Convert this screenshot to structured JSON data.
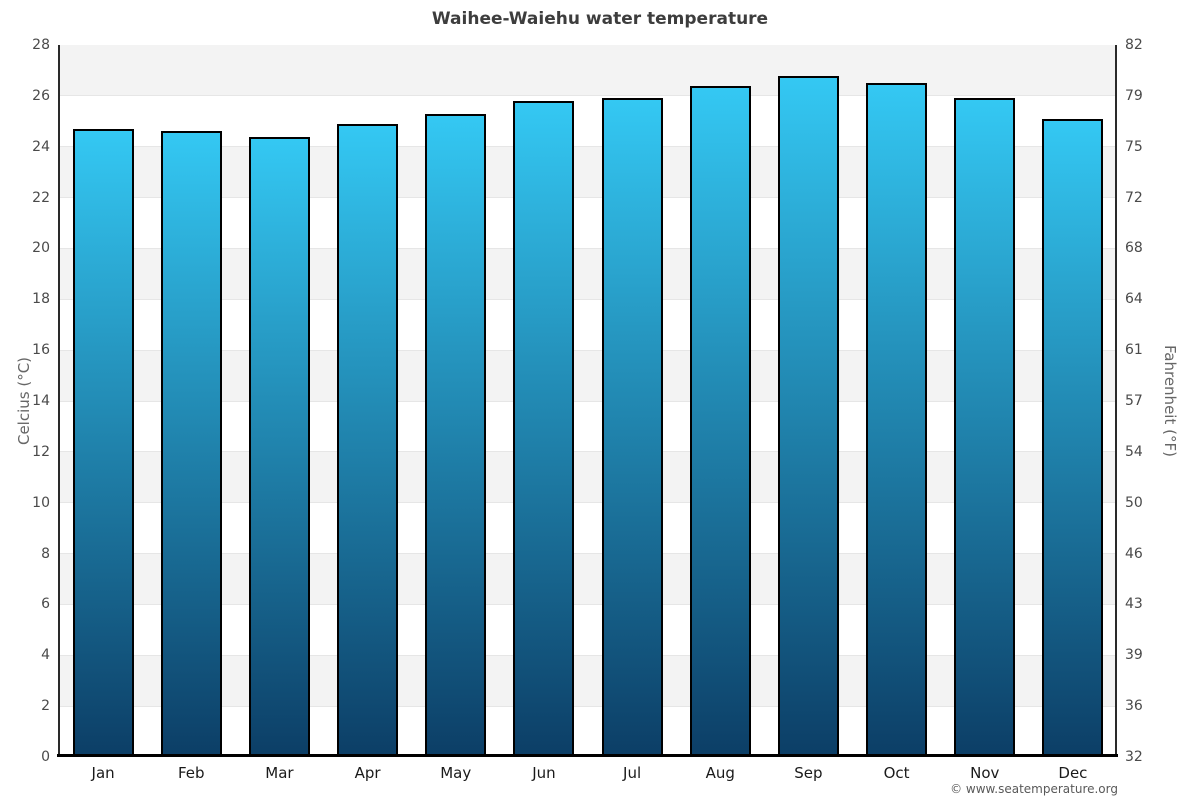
{
  "title": "Waihee-Waiehu water temperature",
  "footer": "© www.seatemperature.org",
  "chart_data": {
    "type": "bar",
    "title": "Waihee-Waiehu water temperature",
    "categories": [
      "Jan",
      "Feb",
      "Mar",
      "Apr",
      "May",
      "Jun",
      "Jul",
      "Aug",
      "Sep",
      "Oct",
      "Nov",
      "Dec"
    ],
    "values": [
      24.7,
      24.6,
      24.4,
      24.9,
      25.3,
      25.8,
      25.9,
      26.4,
      26.8,
      26.5,
      25.9,
      25.1
    ],
    "unit": "°C",
    "ylabel_left": "Celcius (°C)",
    "ylabel_right": "Fahrenheit (°F)",
    "ylim_celsius": [
      0,
      28
    ],
    "ylim_fahrenheit": [
      32,
      82
    ],
    "celsius_ticks": [
      28,
      26,
      24,
      22,
      20,
      18,
      16,
      14,
      12,
      10,
      8,
      6,
      4,
      2,
      0
    ],
    "fahrenheit_ticks": [
      82,
      79,
      75,
      72,
      68,
      64,
      61,
      57,
      54,
      50,
      46,
      43,
      39,
      36,
      32
    ],
    "grid": "alternating-horizontal-bands-every-2C",
    "legend": "none",
    "colors": {
      "bar_gradient_top": "#34c8f3",
      "bar_gradient_bottom": "#0c3e66",
      "bar_border": "#000000",
      "band_gray": "#f3f3f3",
      "band_white": "#ffffff",
      "gridline": "#e6e6e6",
      "title_text": "#3d3d3d",
      "tick_text": "#4a4a4a",
      "month_text": "#1a1a1a",
      "axis_title_text": "#666666",
      "footer_text": "#595959"
    }
  }
}
